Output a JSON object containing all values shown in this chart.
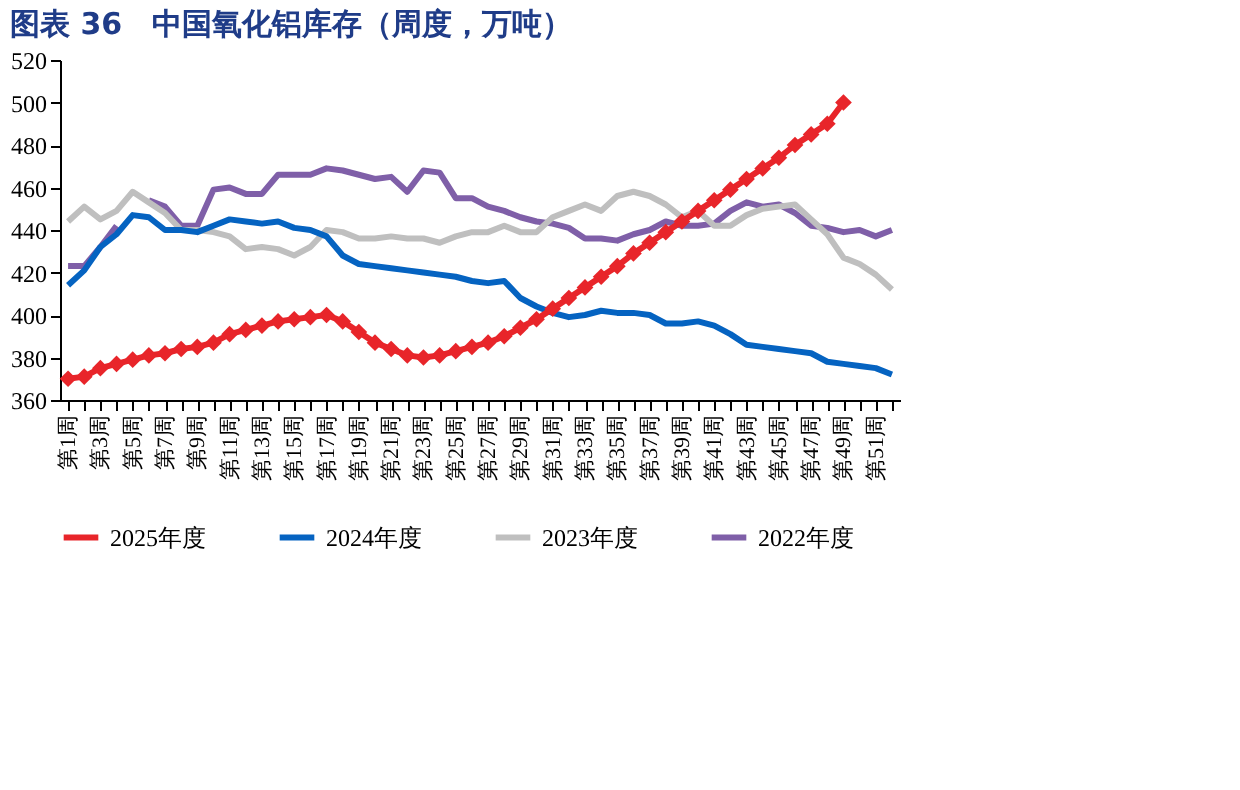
{
  "chart_data": {
    "type": "line",
    "title": "图表 36　中国氧化铝库存（周度，万吨）",
    "categories": [
      "第1周",
      null,
      "第3周",
      null,
      "第5周",
      null,
      "第7周",
      null,
      "第9周",
      null,
      "第11周",
      null,
      "第13周",
      null,
      "第15周",
      null,
      "第17周",
      null,
      "第19周",
      null,
      "第21周",
      null,
      "第23周",
      null,
      "第25周",
      null,
      "第27周",
      null,
      "第29周",
      null,
      "第31周",
      null,
      "第33周",
      null,
      "第35周",
      null,
      "第37周",
      null,
      "第39周",
      null,
      "第41周",
      null,
      "第43周",
      null,
      "第45周",
      null,
      "第47周",
      null,
      "第49周",
      null,
      "第51周",
      null
    ],
    "series": [
      {
        "name": "2025年度",
        "color": "#e8252a",
        "marker": "diamond",
        "values": [
          370,
          371,
          375,
          377,
          379,
          381,
          382,
          384,
          385,
          387,
          391,
          393,
          395,
          397,
          398,
          399,
          400,
          397,
          392,
          387,
          384,
          381,
          380,
          381,
          383,
          385,
          387,
          390,
          394,
          398,
          403,
          408,
          413,
          418,
          423,
          429,
          434,
          439,
          444,
          449,
          454,
          459,
          464,
          469,
          474,
          480,
          485,
          490,
          500,
          null,
          null,
          null
        ]
      },
      {
        "name": "2024年度",
        "color": "#0563c1",
        "values": [
          414,
          421,
          432,
          438,
          447,
          446,
          440,
          440,
          439,
          442,
          445,
          444,
          443,
          444,
          441,
          440,
          437,
          428,
          424,
          423,
          422,
          421,
          420,
          419,
          418,
          416,
          415,
          416,
          408,
          404,
          401,
          399,
          400,
          402,
          401,
          401,
          400,
          396,
          396,
          397,
          395,
          391,
          386,
          385,
          384,
          383,
          382,
          378,
          377,
          376,
          375,
          372
        ]
      },
      {
        "name": "2023年度",
        "color": "#bfbfbf",
        "values": [
          444,
          451,
          445,
          449,
          458,
          453,
          448,
          440,
          440,
          439,
          437,
          431,
          432,
          431,
          428,
          432,
          440,
          439,
          436,
          436,
          437,
          436,
          436,
          434,
          437,
          439,
          439,
          442,
          439,
          439,
          446,
          449,
          452,
          449,
          456,
          458,
          456,
          452,
          446,
          449,
          442,
          442,
          447,
          450,
          451,
          452,
          445,
          438,
          427,
          424,
          419,
          412
        ]
      },
      {
        "name": "2022年度",
        "color": "#7f5fa8",
        "values": [
          423,
          423,
          432,
          442,
          null,
          454,
          451,
          442,
          442,
          459,
          460,
          457,
          457,
          466,
          466,
          466,
          469,
          468,
          466,
          464,
          465,
          458,
          468,
          467,
          455,
          455,
          451,
          449,
          446,
          444,
          443,
          441,
          436,
          436,
          435,
          438,
          440,
          444,
          442,
          442,
          443,
          449,
          453,
          451,
          452,
          448,
          442,
          441,
          439,
          440,
          437,
          440
        ]
      }
    ],
    "ylim": [
      360,
      520
    ],
    "yticks": [
      360,
      380,
      400,
      420,
      440,
      460,
      480,
      500,
      520
    ],
    "grid": false,
    "legend": "bottom",
    "line_style": "solid"
  }
}
